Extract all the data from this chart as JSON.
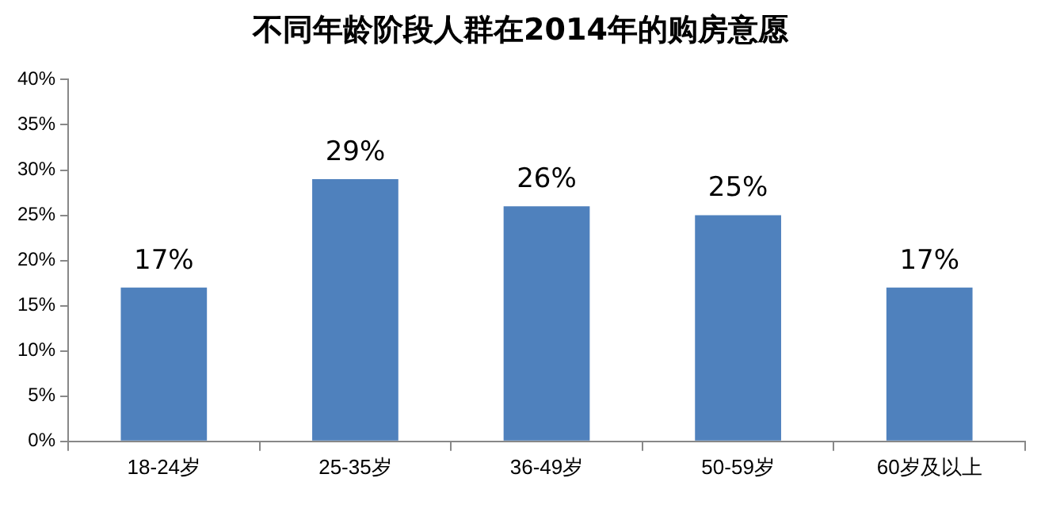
{
  "chart_data": {
    "type": "bar",
    "title": "不同年龄阶段人群在2014年的购房意愿",
    "categories": [
      "18-24岁",
      "25-35岁",
      "36-49岁",
      "50-59岁",
      "60岁及以上"
    ],
    "values": [
      17,
      29,
      26,
      25,
      17
    ],
    "value_labels": [
      "17%",
      "29%",
      "26%",
      "25%",
      "17%"
    ],
    "color": "#4f81bd",
    "ylim": [
      0,
      40
    ],
    "yticks": [
      {
        "value": 0,
        "label": "0%"
      },
      {
        "value": 5,
        "label": "5%"
      },
      {
        "value": 10,
        "label": "10%"
      },
      {
        "value": 15,
        "label": "15%"
      },
      {
        "value": 20,
        "label": "20%"
      },
      {
        "value": 25,
        "label": "25%"
      },
      {
        "value": 30,
        "label": "30%"
      },
      {
        "value": 35,
        "label": "35%"
      },
      {
        "value": 40,
        "label": "40%"
      }
    ],
    "grid": false,
    "legend": false
  }
}
